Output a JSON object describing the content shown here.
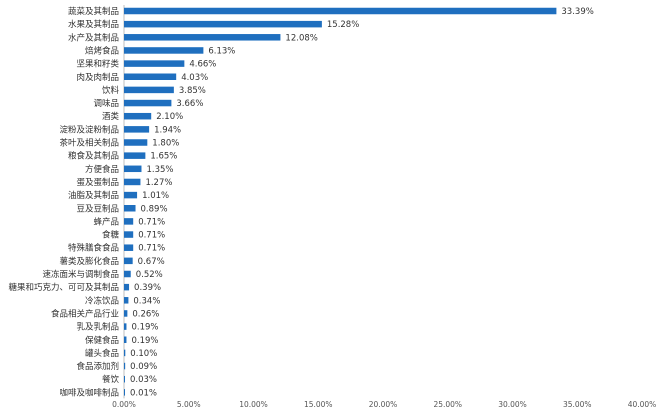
{
  "chart_data": {
    "type": "bar",
    "orientation": "horizontal",
    "categories": [
      "蔬菜及其制品",
      "水果及其制品",
      "水产及其制品",
      "焙烤食品",
      "坚果和籽类",
      "肉及肉制品",
      "饮料",
      "调味品",
      "酒类",
      "淀粉及淀粉制品",
      "茶叶及相关制品",
      "粮食及其制品",
      "方便食品",
      "蛋及蛋制品",
      "油脂及其制品",
      "豆及豆制品",
      "蜂产品",
      "食糖",
      "特殊膳食食品",
      "薯类及膨化食品",
      "速冻面米与调制食品",
      "糖果和巧克力、可可及其制品",
      "冷冻饮品",
      "食品相关产品行业",
      "乳及乳制品",
      "保健食品",
      "罐头食品",
      "食品添加剂",
      "餐饮",
      "咖啡及咖啡制品"
    ],
    "values": [
      33.39,
      15.28,
      12.08,
      6.13,
      4.66,
      4.03,
      3.85,
      3.66,
      2.1,
      1.94,
      1.8,
      1.65,
      1.35,
      1.27,
      1.01,
      0.89,
      0.71,
      0.71,
      0.71,
      0.67,
      0.52,
      0.39,
      0.34,
      0.26,
      0.19,
      0.19,
      0.1,
      0.09,
      0.03,
      0.01
    ],
    "value_labels": [
      "33.39%",
      "15.28%",
      "12.08%",
      "6.13%",
      "4.66%",
      "4.03%",
      "3.85%",
      "3.66%",
      "2.10%",
      "1.94%",
      "1.80%",
      "1.65%",
      "1.35%",
      "1.27%",
      "1.01%",
      "0.89%",
      "0.71%",
      "0.71%",
      "0.71%",
      "0.67%",
      "0.52%",
      "0.39%",
      "0.34%",
      "0.26%",
      "0.19%",
      "0.19%",
      "0.10%",
      "0.09%",
      "0.03%",
      "0.01%"
    ],
    "xlim": [
      0,
      40
    ],
    "x_ticks": [
      "0.00%",
      "5.00%",
      "10.00%",
      "15.00%",
      "20.00%",
      "25.00%",
      "30.00%",
      "35.00%",
      "40.00%"
    ],
    "bar_color": "#1f6fbf",
    "grid": false,
    "legend": "none"
  }
}
